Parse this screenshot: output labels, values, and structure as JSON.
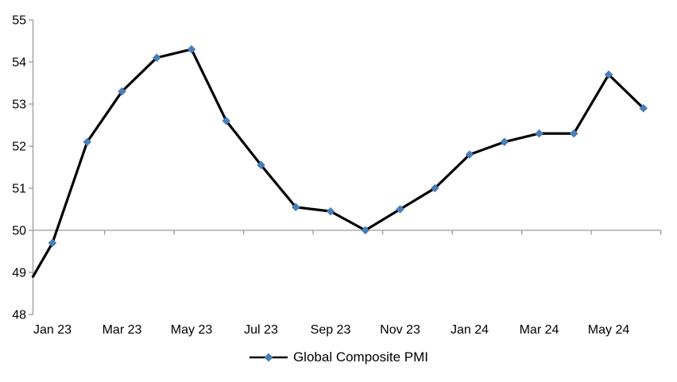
{
  "chart_data": {
    "type": "line",
    "title": "",
    "categories": [
      "Jan 23",
      "Feb 23",
      "Mar 23",
      "Apr 23",
      "May 23",
      "Jun 23",
      "Jul 23",
      "Aug 23",
      "Sep 23",
      "Oct 23",
      "Nov 23",
      "Dec 23",
      "Jan 24",
      "Feb 24",
      "Mar 24",
      "Apr 24",
      "May 24",
      "Jun 24"
    ],
    "series": [
      {
        "name": "Global Composite PMI",
        "values": [
          49.7,
          52.1,
          53.3,
          54.1,
          54.3,
          52.6,
          51.55,
          50.55,
          50.45,
          50.0,
          50.5,
          51.0,
          51.8,
          52.1,
          52.3,
          52.3,
          53.7,
          52.9
        ],
        "line_color": "#000000",
        "marker": "diamond",
        "marker_color": "#4a7ebb"
      }
    ],
    "lead_in_value_at_left_edge": 48.9,
    "x_axis": {
      "tick_labels": [
        "Jan 23",
        "Mar 23",
        "May 23",
        "Jul 23",
        "Sep 23",
        "Nov 23",
        "Jan 24",
        "Mar 24",
        "May 24"
      ],
      "label_interval": 2,
      "crosses_at": 50
    },
    "y_axis": {
      "min": 48,
      "max": 55,
      "tick_interval": 1,
      "ticks": [
        48,
        49,
        50,
        51,
        52,
        53,
        54,
        55
      ]
    },
    "grid": false,
    "legend": {
      "position": "bottom",
      "entries": [
        "Global Composite PMI"
      ]
    },
    "colors": {
      "axis": "#9a9a9a",
      "text": "#000000",
      "background": "#ffffff"
    }
  }
}
